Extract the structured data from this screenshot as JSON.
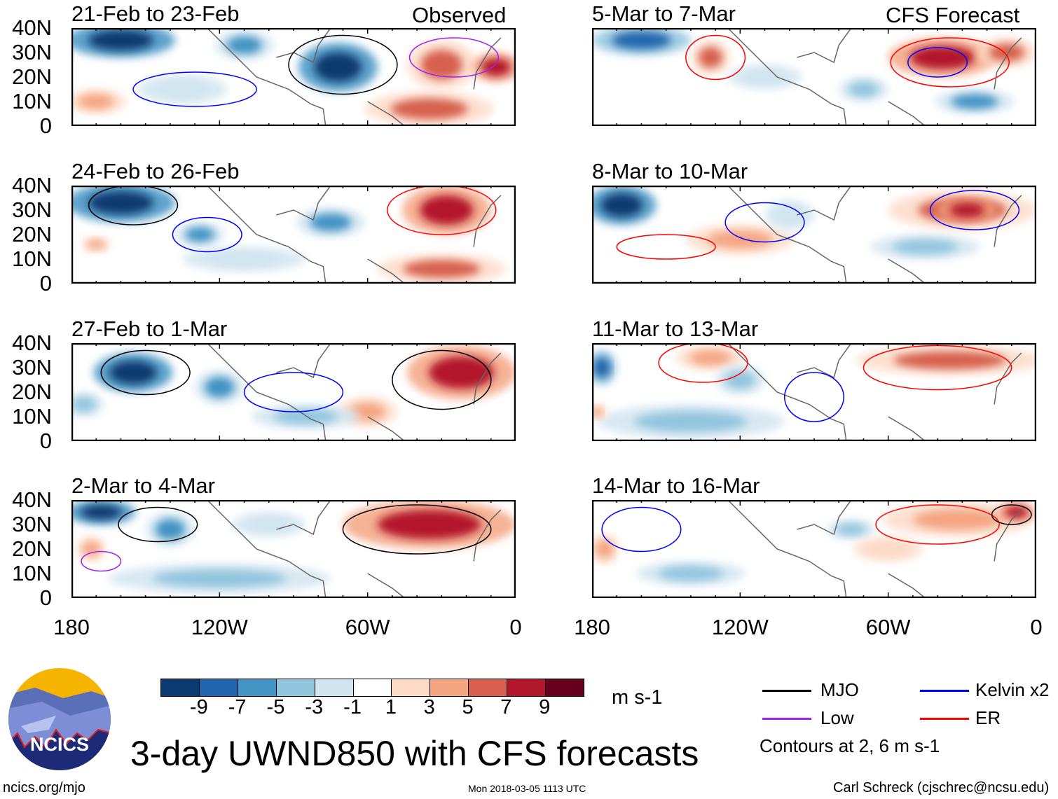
{
  "title": "3-day UWND850 with CFS forecasts",
  "columns": {
    "left": "Observed",
    "right": "CFS Forecast"
  },
  "footer": {
    "left": "ncics.org/mjo",
    "center": "Mon 2018-03-05 1113 UTC",
    "right": "Carl Schreck (cjschrec@ncsu.edu)"
  },
  "logo_text": "NCICS",
  "colorbar": {
    "unit": "m s-1",
    "labels": [
      "-9",
      "-7",
      "-5",
      "-3",
      "-1",
      "1",
      "3",
      "5",
      "7",
      "9"
    ],
    "colors": [
      "#0b3b70",
      "#2166ac",
      "#4393c3",
      "#92c5de",
      "#d1e5f0",
      "#ffffff",
      "#fddbc7",
      "#f4a582",
      "#d6604d",
      "#b2182b",
      "#67001f"
    ]
  },
  "legend": {
    "items": [
      {
        "label": "MJO",
        "color": "#000000"
      },
      {
        "label": "Kelvin x2",
        "color": "#0000ff"
      },
      {
        "label": "Low",
        "color": "#a020f0"
      },
      {
        "label": "ER",
        "color": "#ff0000"
      }
    ],
    "note": "Contours at 2, 6 m s-1"
  },
  "chart_data": {
    "type": "heatmap",
    "variable": "850-hPa zonal wind anomaly",
    "unit": "m s-1",
    "lon_range": [
      -180,
      0
    ],
    "lat_range": [
      0,
      40
    ],
    "ylabels": [
      "40N",
      "30N",
      "20N",
      "10N",
      "0"
    ],
    "xlabels": [
      "180",
      "120W",
      "60W",
      "0"
    ],
    "panels": [
      {
        "label": "21-Feb to 23-Feb",
        "features": [
          [
            -160,
            35,
            22,
            7,
            -9
          ],
          [
            -110,
            33,
            12,
            6,
            -5
          ],
          [
            -72,
            24,
            16,
            10,
            -9
          ],
          [
            -30,
            25,
            14,
            10,
            7
          ],
          [
            -8,
            24,
            10,
            6,
            9
          ],
          [
            -170,
            10,
            12,
            5,
            5
          ],
          [
            -35,
            7,
            26,
            7,
            7
          ],
          [
            -135,
            15,
            18,
            6,
            -2
          ]
        ],
        "contours": [
          [
            -70,
            25,
            22,
            12,
            "MJO"
          ],
          [
            -130,
            15,
            25,
            7,
            "Kelvin"
          ],
          [
            -25,
            28,
            18,
            8,
            "Low"
          ]
        ]
      },
      {
        "label": "24-Feb to 26-Feb",
        "features": [
          [
            -160,
            33,
            22,
            8,
            -9
          ],
          [
            -128,
            20,
            10,
            5,
            -5
          ],
          [
            -75,
            25,
            14,
            6,
            -5
          ],
          [
            -28,
            30,
            18,
            10,
            9
          ],
          [
            -30,
            6,
            26,
            6,
            7
          ],
          [
            -170,
            16,
            6,
            3,
            5
          ],
          [
            -110,
            10,
            25,
            5,
            -2
          ]
        ],
        "contours": [
          [
            -155,
            32,
            18,
            8,
            "MJO"
          ],
          [
            -125,
            20,
            14,
            7,
            "Kelvin"
          ],
          [
            -30,
            30,
            22,
            10,
            "ER"
          ]
        ]
      },
      {
        "label": "27-Feb to 1-Mar",
        "features": [
          [
            -155,
            28,
            16,
            8,
            -9
          ],
          [
            -120,
            22,
            10,
            7,
            -5
          ],
          [
            -22,
            28,
            22,
            11,
            9
          ],
          [
            -60,
            12,
            12,
            6,
            5
          ],
          [
            -85,
            10,
            22,
            5,
            -3
          ],
          [
            -175,
            15,
            8,
            5,
            -3
          ]
        ],
        "contours": [
          [
            -150,
            28,
            18,
            9,
            "MJO"
          ],
          [
            -90,
            20,
            20,
            8,
            "Kelvin"
          ],
          [
            -30,
            25,
            20,
            12,
            "MJO"
          ]
        ]
      },
      {
        "label": "2-Mar to 4-Mar",
        "features": [
          [
            -168,
            35,
            14,
            5,
            -9
          ],
          [
            -140,
            28,
            10,
            7,
            -5
          ],
          [
            -35,
            30,
            35,
            10,
            9
          ],
          [
            -172,
            20,
            6,
            5,
            5
          ],
          [
            -120,
            8,
            45,
            6,
            -3
          ],
          [
            -100,
            30,
            15,
            5,
            -2
          ]
        ],
        "contours": [
          [
            -145,
            30,
            16,
            7,
            "MJO"
          ],
          [
            -40,
            28,
            30,
            10,
            "MJO"
          ],
          [
            -168,
            15,
            8,
            4,
            "Low"
          ]
        ]
      },
      {
        "label": "5-Mar to 7-Mar",
        "features": [
          [
            -160,
            35,
            20,
            6,
            -7
          ],
          [
            -132,
            28,
            8,
            7,
            7
          ],
          [
            -38,
            28,
            22,
            8,
            9
          ],
          [
            -12,
            30,
            12,
            6,
            7
          ],
          [
            -70,
            15,
            10,
            5,
            -3
          ],
          [
            -25,
            10,
            16,
            5,
            -5
          ],
          [
            -110,
            20,
            15,
            5,
            -2
          ]
        ],
        "contours": [
          [
            -130,
            28,
            12,
            9,
            "ER"
          ],
          [
            -35,
            26,
            24,
            10,
            "ER"
          ],
          [
            -40,
            26,
            12,
            6,
            "Kelvin"
          ]
        ]
      },
      {
        "label": "8-Mar to 10-Mar",
        "features": [
          [
            -168,
            32,
            14,
            8,
            -9
          ],
          [
            -120,
            18,
            22,
            6,
            5
          ],
          [
            -30,
            30,
            30,
            8,
            7
          ],
          [
            -28,
            30,
            12,
            5,
            9
          ],
          [
            -45,
            15,
            22,
            5,
            -3
          ],
          [
            -100,
            28,
            10,
            6,
            -2
          ]
        ],
        "contours": [
          [
            -110,
            25,
            16,
            8,
            "Kelvin"
          ],
          [
            -25,
            30,
            18,
            8,
            "Kelvin"
          ],
          [
            -150,
            15,
            20,
            5,
            "ER"
          ]
        ]
      },
      {
        "label": "11-Mar to 13-Mar",
        "features": [
          [
            -176,
            30,
            6,
            7,
            -7
          ],
          [
            -132,
            34,
            14,
            5,
            5
          ],
          [
            -35,
            33,
            38,
            6,
            7
          ],
          [
            -140,
            8,
            38,
            7,
            -3
          ],
          [
            -120,
            25,
            10,
            6,
            -3
          ],
          [
            -178,
            12,
            4,
            3,
            5
          ]
        ],
        "contours": [
          [
            -135,
            32,
            18,
            8,
            "ER"
          ],
          [
            -40,
            30,
            30,
            9,
            "ER"
          ],
          [
            -90,
            18,
            12,
            10,
            "Kelvin"
          ]
        ]
      },
      {
        "label": "14-Mar to 16-Mar",
        "features": [
          [
            -175,
            20,
            6,
            6,
            5
          ],
          [
            -32,
            32,
            30,
            7,
            5
          ],
          [
            -8,
            35,
            8,
            4,
            9
          ],
          [
            -140,
            10,
            22,
            5,
            -3
          ],
          [
            -75,
            28,
            10,
            4,
            -3
          ],
          [
            -60,
            20,
            14,
            5,
            2
          ]
        ],
        "contours": [
          [
            -160,
            28,
            16,
            9,
            "Kelvin"
          ],
          [
            -40,
            30,
            25,
            8,
            "ER"
          ],
          [
            -10,
            34,
            8,
            4,
            "MJO"
          ]
        ]
      }
    ]
  }
}
